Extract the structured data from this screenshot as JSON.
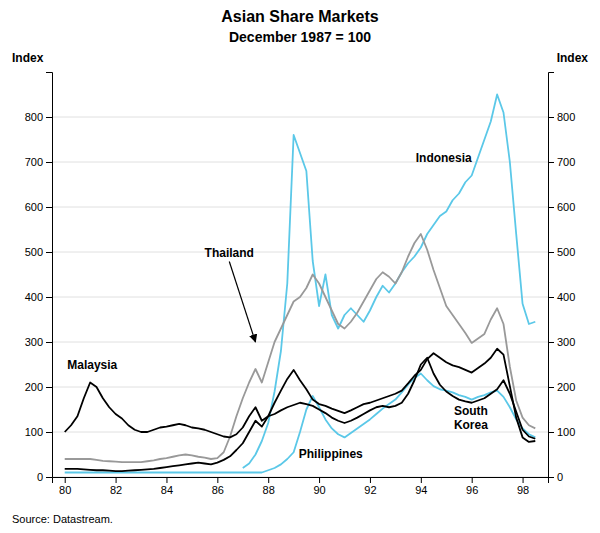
{
  "chart_data": {
    "type": "line",
    "title": "Asian Share Markets",
    "subtitle": "December 1987 = 100",
    "ylabel": "Index",
    "y2label": "Index",
    "source": "Source: Datastream.",
    "xlim": [
      1979.5,
      1999.0
    ],
    "xticks": [
      {
        "value": 1980,
        "label": "80"
      },
      {
        "value": 1982,
        "label": "82"
      },
      {
        "value": 1984,
        "label": "84"
      },
      {
        "value": 1986,
        "label": "86"
      },
      {
        "value": 1988,
        "label": "88"
      },
      {
        "value": 1990,
        "label": "90"
      },
      {
        "value": 1992,
        "label": "92"
      },
      {
        "value": 1994,
        "label": "94"
      },
      {
        "value": 1996,
        "label": "96"
      },
      {
        "value": 1998,
        "label": "98"
      }
    ],
    "ylim": [
      0,
      900
    ],
    "yticks": [
      0,
      100,
      200,
      300,
      400,
      500,
      600,
      700,
      800
    ],
    "y2lim": [
      0,
      900
    ],
    "y2ticks": [
      0,
      100,
      200,
      300,
      400,
      500,
      600,
      700,
      800
    ],
    "grid": true,
    "series": [
      {
        "name": "Philippines",
        "color": "#5bc8e8",
        "x": [
          1980,
          1980.25,
          1980.5,
          1980.75,
          1981,
          1981.25,
          1981.5,
          1981.75,
          1982,
          1982.25,
          1982.5,
          1982.75,
          1983,
          1983.25,
          1983.5,
          1983.75,
          1984,
          1984.25,
          1984.5,
          1984.75,
          1985,
          1985.25,
          1985.5,
          1985.75,
          1986,
          1986.25,
          1986.5,
          1986.75,
          1987,
          1987.25,
          1987.5,
          1987.75,
          1988,
          1988.25,
          1988.5,
          1988.75,
          1989,
          1989.25,
          1989.5,
          1989.75,
          1990,
          1990.25,
          1990.5,
          1990.75,
          1991,
          1991.25,
          1991.5,
          1991.75,
          1992,
          1992.25,
          1992.5,
          1992.75,
          1993,
          1993.25,
          1993.5,
          1993.75,
          1994,
          1994.25,
          1994.5,
          1994.75,
          1995,
          1995.25,
          1995.5,
          1995.75,
          1996,
          1996.25,
          1996.5,
          1996.75,
          1997,
          1997.25,
          1997.5,
          1997.75,
          1998,
          1998.25,
          1998.5
        ],
        "values": [
          10,
          10,
          10,
          10,
          10,
          10,
          10,
          10,
          10,
          10,
          10,
          10,
          10,
          10,
          10,
          10,
          10,
          10,
          10,
          10,
          10,
          10,
          10,
          10,
          10,
          10,
          10,
          10,
          10,
          10,
          10,
          10,
          15,
          20,
          28,
          40,
          55,
          100,
          150,
          180,
          155,
          128,
          108,
          95,
          88,
          98,
          108,
          118,
          128,
          140,
          152,
          162,
          172,
          188,
          205,
          220,
          230,
          215,
          202,
          195,
          192,
          188,
          182,
          178,
          172,
          178,
          182,
          188,
          192,
          178,
          155,
          128,
          108,
          95,
          88
        ]
      },
      {
        "name": "Indonesia",
        "color": "#5bc8e8",
        "x": [
          1987,
          1987.25,
          1987.5,
          1987.75,
          1988,
          1988.25,
          1988.5,
          1988.75,
          1989,
          1989.25,
          1989.5,
          1989.75,
          1990,
          1990.25,
          1990.5,
          1990.75,
          1991,
          1991.25,
          1991.5,
          1991.75,
          1992,
          1992.25,
          1992.5,
          1992.75,
          1993,
          1993.25,
          1993.5,
          1993.75,
          1994,
          1994.25,
          1994.5,
          1994.75,
          1995,
          1995.25,
          1995.5,
          1995.75,
          1996,
          1996.25,
          1996.5,
          1996.75,
          1997,
          1997.25,
          1997.5,
          1997.75,
          1998,
          1998.25,
          1998.5
        ],
        "values": [
          20,
          30,
          50,
          80,
          120,
          190,
          280,
          430,
          760,
          720,
          680,
          480,
          380,
          450,
          360,
          330,
          360,
          375,
          360,
          345,
          370,
          400,
          425,
          410,
          430,
          455,
          475,
          490,
          510,
          540,
          560,
          580,
          590,
          615,
          630,
          655,
          670,
          710,
          750,
          790,
          850,
          810,
          700,
          540,
          385,
          340,
          345
        ]
      },
      {
        "name": "Thailand",
        "color": "#999999",
        "x": [
          1980,
          1980.25,
          1980.5,
          1980.75,
          1981,
          1981.25,
          1981.5,
          1981.75,
          1982,
          1982.25,
          1982.5,
          1982.75,
          1983,
          1983.25,
          1983.5,
          1983.75,
          1984,
          1984.25,
          1984.5,
          1984.75,
          1985,
          1985.25,
          1985.5,
          1985.75,
          1986,
          1986.25,
          1986.5,
          1986.75,
          1987,
          1987.25,
          1987.5,
          1987.75,
          1988,
          1988.25,
          1988.5,
          1988.75,
          1989,
          1989.25,
          1989.5,
          1989.75,
          1990,
          1990.25,
          1990.5,
          1990.75,
          1991,
          1991.25,
          1991.5,
          1991.75,
          1992,
          1992.25,
          1992.5,
          1992.75,
          1993,
          1993.25,
          1993.5,
          1993.75,
          1994,
          1994.25,
          1994.5,
          1994.75,
          1995,
          1995.25,
          1995.5,
          1995.75,
          1996,
          1996.25,
          1996.5,
          1996.75,
          1997,
          1997.25,
          1997.5,
          1997.75,
          1998,
          1998.25,
          1998.5
        ],
        "values": [
          40,
          40,
          40,
          40,
          40,
          38,
          36,
          35,
          34,
          33,
          33,
          33,
          33,
          35,
          37,
          40,
          42,
          45,
          48,
          50,
          48,
          45,
          43,
          40,
          42,
          55,
          90,
          135,
          175,
          210,
          240,
          210,
          255,
          300,
          330,
          360,
          390,
          400,
          420,
          450,
          430,
          400,
          370,
          340,
          330,
          345,
          365,
          390,
          415,
          440,
          455,
          445,
          430,
          455,
          490,
          520,
          540,
          505,
          460,
          420,
          380,
          360,
          340,
          320,
          298,
          308,
          318,
          350,
          375,
          340,
          245,
          170,
          132,
          115,
          108
        ]
      },
      {
        "name": "South Korea",
        "color": "#000000",
        "x": [
          1980,
          1980.25,
          1980.5,
          1980.75,
          1981,
          1981.25,
          1981.5,
          1981.75,
          1982,
          1982.25,
          1982.5,
          1982.75,
          1983,
          1983.25,
          1983.5,
          1983.75,
          1984,
          1984.25,
          1984.5,
          1984.75,
          1985,
          1985.25,
          1985.5,
          1985.75,
          1986,
          1986.25,
          1986.5,
          1986.75,
          1987,
          1987.25,
          1987.5,
          1987.75,
          1988,
          1988.25,
          1988.5,
          1988.75,
          1989,
          1989.25,
          1989.5,
          1989.75,
          1990,
          1990.25,
          1990.5,
          1990.75,
          1991,
          1991.25,
          1991.5,
          1991.75,
          1992,
          1992.25,
          1992.5,
          1992.75,
          1993,
          1993.25,
          1993.5,
          1993.75,
          1994,
          1994.25,
          1994.5,
          1994.75,
          1995,
          1995.25,
          1995.5,
          1995.75,
          1996,
          1996.25,
          1996.5,
          1996.75,
          1997,
          1997.25,
          1997.5,
          1997.75,
          1998,
          1998.25,
          1998.5
        ],
        "values": [
          18,
          18,
          18,
          17,
          16,
          15,
          15,
          14,
          13,
          13,
          14,
          15,
          16,
          17,
          18,
          20,
          22,
          24,
          26,
          28,
          30,
          32,
          30,
          28,
          32,
          38,
          46,
          60,
          75,
          100,
          125,
          112,
          135,
          165,
          192,
          218,
          238,
          215,
          195,
          172,
          162,
          158,
          152,
          147,
          142,
          148,
          155,
          162,
          165,
          170,
          175,
          180,
          185,
          192,
          208,
          225,
          238,
          262,
          275,
          265,
          255,
          248,
          244,
          238,
          232,
          242,
          252,
          265,
          285,
          272,
          202,
          132,
          88,
          78,
          80
        ]
      },
      {
        "name": "Malaysia",
        "color": "#000000",
        "x": [
          1980,
          1980.25,
          1980.5,
          1980.75,
          1981,
          1981.25,
          1981.5,
          1981.75,
          1982,
          1982.25,
          1982.5,
          1982.75,
          1983,
          1983.25,
          1983.5,
          1983.75,
          1984,
          1984.25,
          1984.5,
          1984.75,
          1985,
          1985.25,
          1985.5,
          1985.75,
          1986,
          1986.25,
          1986.5,
          1986.75,
          1987,
          1987.25,
          1987.5,
          1987.75,
          1988,
          1988.25,
          1988.5,
          1988.75,
          1989,
          1989.25,
          1989.5,
          1989.75,
          1990,
          1990.25,
          1990.5,
          1990.75,
          1991,
          1991.25,
          1991.5,
          1991.75,
          1992,
          1992.25,
          1992.5,
          1992.75,
          1993,
          1993.25,
          1993.5,
          1993.75,
          1994,
          1994.25,
          1994.5,
          1994.75,
          1995,
          1995.25,
          1995.5,
          1995.75,
          1996,
          1996.25,
          1996.5,
          1996.75,
          1997,
          1997.25,
          1997.5,
          1997.75,
          1998,
          1998.25,
          1998.5
        ],
        "values": [
          100,
          115,
          135,
          175,
          210,
          200,
          175,
          155,
          140,
          130,
          115,
          105,
          100,
          100,
          105,
          110,
          112,
          115,
          118,
          115,
          110,
          108,
          105,
          100,
          95,
          90,
          88,
          95,
          110,
          135,
          155,
          125,
          135,
          140,
          148,
          155,
          160,
          165,
          162,
          158,
          150,
          142,
          132,
          125,
          120,
          125,
          132,
          140,
          148,
          155,
          158,
          155,
          158,
          165,
          185,
          215,
          250,
          265,
          230,
          205,
          190,
          180,
          172,
          168,
          165,
          170,
          175,
          185,
          195,
          215,
          185,
          145,
          105,
          90,
          85
        ]
      }
    ],
    "annotations": [
      {
        "text": "Indonesia",
        "x": 1993.8,
        "y": 700
      },
      {
        "text": "Malaysia",
        "x": 1980.1,
        "y": 240
      },
      {
        "text": "Philippines",
        "x": 1989.2,
        "y": 42
      },
      {
        "text": "South\nKorea",
        "x": 1995.3,
        "y": 138
      },
      {
        "text": "Thailand",
        "x": 1985.5,
        "y": 490,
        "xy": [
          1987.5,
          300
        ]
      }
    ]
  }
}
